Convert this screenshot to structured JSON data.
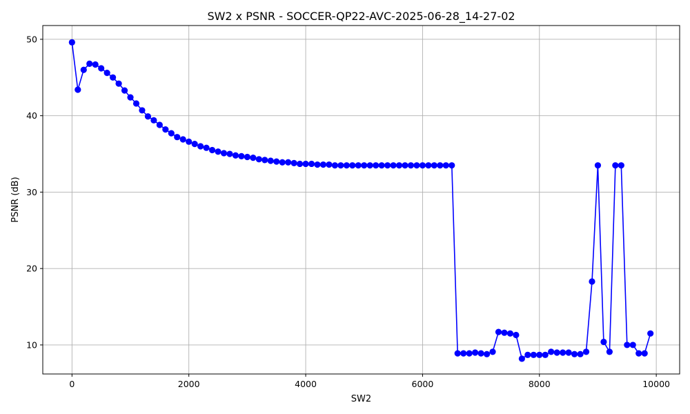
{
  "chart_data": {
    "type": "line",
    "title": "SW2 x PSNR - SOCCER-QP22-AVC-2025-06-28_14-27-02",
    "xlabel": "SW2",
    "ylabel": "PSNR (dB)",
    "xlim": [
      -500,
      10400
    ],
    "ylim": [
      6.2,
      51.8
    ],
    "xticks": [
      0,
      2000,
      4000,
      6000,
      8000,
      10000
    ],
    "yticks": [
      10,
      20,
      30,
      40,
      50
    ],
    "grid": true,
    "series": [
      {
        "color": "#0000ff",
        "marker": "circle",
        "x": [
          0,
          100,
          200,
          300,
          400,
          500,
          600,
          700,
          800,
          900,
          1000,
          1100,
          1200,
          1300,
          1400,
          1500,
          1600,
          1700,
          1800,
          1900,
          2000,
          2100,
          2200,
          2300,
          2400,
          2500,
          2600,
          2700,
          2800,
          2900,
          3000,
          3100,
          3200,
          3300,
          3400,
          3500,
          3600,
          3700,
          3800,
          3900,
          4000,
          4100,
          4200,
          4300,
          4400,
          4500,
          4600,
          4700,
          4800,
          4900,
          5000,
          5100,
          5200,
          5300,
          5400,
          5500,
          5600,
          5700,
          5800,
          5900,
          6000,
          6100,
          6200,
          6300,
          6400,
          6500,
          6600,
          6700,
          6800,
          6900,
          7000,
          7100,
          7200,
          7300,
          7400,
          7500,
          7600,
          7700,
          7800,
          7900,
          8000,
          8100,
          8200,
          8300,
          8400,
          8500,
          8600,
          8700,
          8800,
          8900,
          9000,
          9100,
          9200,
          9300,
          9400,
          9500,
          9600,
          9700,
          9800,
          9900
        ],
        "y": [
          49.6,
          43.4,
          46.0,
          46.8,
          46.7,
          46.2,
          45.6,
          45.0,
          44.2,
          43.3,
          42.4,
          41.6,
          40.7,
          39.9,
          39.4,
          38.8,
          38.2,
          37.7,
          37.2,
          36.9,
          36.6,
          36.3,
          36.0,
          35.8,
          35.5,
          35.3,
          35.1,
          35.0,
          34.8,
          34.7,
          34.6,
          34.5,
          34.3,
          34.2,
          34.1,
          34.0,
          33.9,
          33.9,
          33.8,
          33.7,
          33.7,
          33.7,
          33.6,
          33.6,
          33.6,
          33.5,
          33.5,
          33.5,
          33.5,
          33.5,
          33.5,
          33.5,
          33.5,
          33.5,
          33.5,
          33.5,
          33.5,
          33.5,
          33.5,
          33.5,
          33.5,
          33.5,
          33.5,
          33.5,
          33.5,
          33.5,
          8.9,
          8.9,
          8.9,
          9.0,
          8.9,
          8.8,
          9.1,
          11.7,
          11.6,
          11.5,
          11.3,
          8.2,
          8.7,
          8.7,
          8.7,
          8.7,
          9.1,
          9.0,
          9.0,
          9.0,
          8.8,
          8.8,
          9.1,
          18.3,
          33.5,
          10.4,
          9.1,
          33.5,
          33.5,
          10.0,
          10.0,
          8.9,
          8.9,
          11.5
        ]
      }
    ]
  }
}
